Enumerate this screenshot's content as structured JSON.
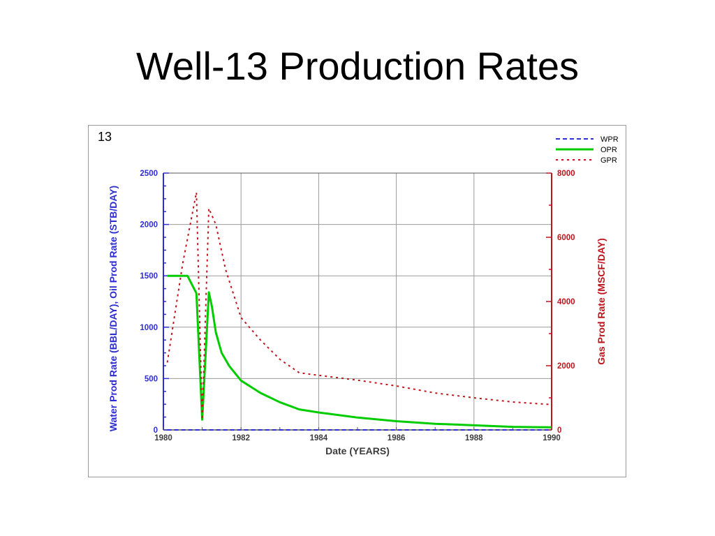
{
  "slide": {
    "title": "Well-13 Production Rates"
  },
  "chart_label": "13",
  "colors": {
    "water": "#2d2dd2",
    "oil": "#00cc00",
    "gas": "#c0141e",
    "grid": "#9a9a9a"
  },
  "chart_data": {
    "type": "line",
    "xlabel": "Date (YEARS)",
    "ylabel": "Water Prod Rate (BBL/DAY), Oil Prod Rate (STB/DAY)",
    "y2label": "Gas Prod Rate (MSCF/DAY)",
    "xlim": [
      1980,
      1990
    ],
    "ylim": [
      0,
      2500
    ],
    "y2lim": [
      0,
      8000
    ],
    "x_ticks": [
      1980,
      1982,
      1984,
      1986,
      1988,
      1990
    ],
    "y_ticks": [
      0,
      500,
      1000,
      1500,
      2000,
      2500
    ],
    "y2_ticks": [
      0,
      2000,
      4000,
      6000,
      8000
    ],
    "grid": true,
    "legend_position": "top-right",
    "series": [
      {
        "name": "WPR",
        "axis": "left",
        "style": "dashed",
        "color": "#2d2dd2",
        "x": [
          1980.1,
          1990
        ],
        "y": [
          0,
          0
        ]
      },
      {
        "name": "OPR",
        "axis": "left",
        "style": "solid",
        "color": "#00cc00",
        "x": [
          1980.1,
          1980.5,
          1980.62,
          1980.85,
          1981.0,
          1981.17,
          1981.25,
          1981.35,
          1981.5,
          1981.7,
          1982.0,
          1982.5,
          1983.0,
          1983.5,
          1984.0,
          1985.0,
          1986.0,
          1987.0,
          1988.0,
          1989.0,
          1990.0
        ],
        "y": [
          1500,
          1500,
          1500,
          1330,
          100,
          1340,
          1200,
          950,
          750,
          620,
          480,
          360,
          270,
          200,
          170,
          120,
          85,
          60,
          45,
          30,
          25
        ]
      },
      {
        "name": "GPR",
        "axis": "right",
        "style": "dotted",
        "color": "#c0141e",
        "x": [
          1980.1,
          1980.5,
          1980.85,
          1981.0,
          1981.17,
          1981.35,
          1981.6,
          1982.0,
          1982.5,
          1983.0,
          1983.5,
          1984.0,
          1985.0,
          1986.0,
          1987.0,
          1988.0,
          1989.0,
          1990.0
        ],
        "y": [
          2100,
          5200,
          7400,
          320,
          6900,
          6400,
          5000,
          3500,
          2800,
          2200,
          1780,
          1700,
          1550,
          1370,
          1150,
          1000,
          870,
          790
        ]
      }
    ]
  }
}
